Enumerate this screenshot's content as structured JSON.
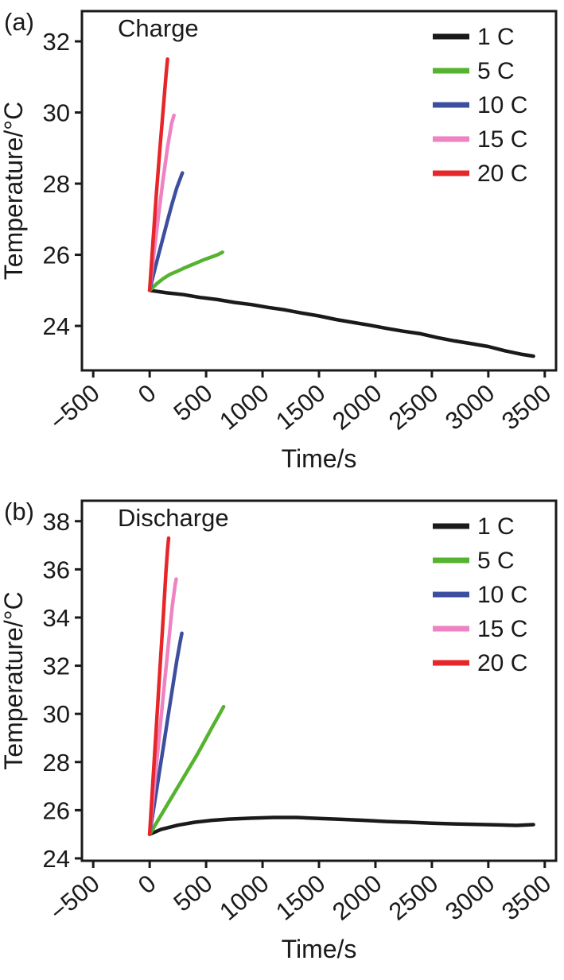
{
  "style": {
    "background": "#ffffff",
    "axis_color": "#1a1a1a",
    "line_width": 4.5,
    "legend_swatch_width": 7
  },
  "chart_data": [
    {
      "type": "line",
      "panel_label": "(a)",
      "title": "Charge",
      "xlabel": "Time/s",
      "ylabel": "Temperature/°C",
      "xlim": [
        -600,
        3600
      ],
      "ylim": [
        22.75,
        32.85
      ],
      "xticks": [
        -500,
        0,
        500,
        1000,
        1500,
        2000,
        2500,
        3000,
        3500
      ],
      "yticks": [
        24,
        26,
        28,
        30,
        32
      ],
      "grid": false,
      "legend_position": "top-right",
      "series": [
        {
          "name": "1 C",
          "color": "#1a1a1a",
          "points": [
            [
              0,
              25.0
            ],
            [
              150,
              24.93
            ],
            [
              300,
              24.88
            ],
            [
              450,
              24.8
            ],
            [
              600,
              24.74
            ],
            [
              750,
              24.66
            ],
            [
              900,
              24.6
            ],
            [
              1050,
              24.52
            ],
            [
              1200,
              24.45
            ],
            [
              1350,
              24.36
            ],
            [
              1500,
              24.28
            ],
            [
              1650,
              24.18
            ],
            [
              1800,
              24.1
            ],
            [
              1950,
              24.02
            ],
            [
              2100,
              23.93
            ],
            [
              2250,
              23.85
            ],
            [
              2400,
              23.78
            ],
            [
              2550,
              23.67
            ],
            [
              2700,
              23.58
            ],
            [
              2850,
              23.5
            ],
            [
              3000,
              23.42
            ],
            [
              3150,
              23.3
            ],
            [
              3300,
              23.2
            ],
            [
              3400,
              23.15
            ]
          ]
        },
        {
          "name": "5 C",
          "color": "#55b330",
          "points": [
            [
              0,
              25.0
            ],
            [
              60,
              25.18
            ],
            [
              120,
              25.33
            ],
            [
              180,
              25.45
            ],
            [
              240,
              25.53
            ],
            [
              300,
              25.62
            ],
            [
              360,
              25.7
            ],
            [
              420,
              25.78
            ],
            [
              480,
              25.86
            ],
            [
              540,
              25.93
            ],
            [
              600,
              26.0
            ],
            [
              645,
              26.07
            ]
          ]
        },
        {
          "name": "10 C",
          "color": "#3c4f9f",
          "points": [
            [
              0,
              25.0
            ],
            [
              40,
              25.52
            ],
            [
              80,
              26.02
            ],
            [
              120,
              26.5
            ],
            [
              160,
              26.98
            ],
            [
              200,
              27.45
            ],
            [
              240,
              27.88
            ],
            [
              275,
              28.18
            ],
            [
              290,
              28.3
            ]
          ]
        },
        {
          "name": "15 C",
          "color": "#ee82c2",
          "points": [
            [
              0,
              25.0
            ],
            [
              40,
              26.1
            ],
            [
              80,
              27.15
            ],
            [
              120,
              28.15
            ],
            [
              160,
              29.05
            ],
            [
              195,
              29.7
            ],
            [
              215,
              29.92
            ]
          ]
        },
        {
          "name": "20 C",
          "color": "#e62629",
          "points": [
            [
              0,
              25.0
            ],
            [
              30,
              26.4
            ],
            [
              60,
              27.75
            ],
            [
              90,
              28.95
            ],
            [
              120,
              30.1
            ],
            [
              145,
              31.05
            ],
            [
              158,
              31.5
            ]
          ]
        }
      ]
    },
    {
      "type": "line",
      "panel_label": "(b)",
      "title": "Discharge",
      "xlabel": "Time/s",
      "ylabel": "Temperature/°C",
      "xlim": [
        -600,
        3600
      ],
      "ylim": [
        23.9,
        38.85
      ],
      "xticks": [
        -500,
        0,
        500,
        1000,
        1500,
        2000,
        2500,
        3000,
        3500
      ],
      "yticks": [
        24,
        26,
        28,
        30,
        32,
        34,
        36,
        38
      ],
      "grid": false,
      "legend_position": "top-right",
      "series": [
        {
          "name": "1 C",
          "color": "#1a1a1a",
          "points": [
            [
              0,
              25.0
            ],
            [
              100,
              25.2
            ],
            [
              250,
              25.38
            ],
            [
              400,
              25.5
            ],
            [
              550,
              25.58
            ],
            [
              700,
              25.63
            ],
            [
              900,
              25.67
            ],
            [
              1100,
              25.7
            ],
            [
              1300,
              25.7
            ],
            [
              1500,
              25.66
            ],
            [
              1700,
              25.62
            ],
            [
              1900,
              25.58
            ],
            [
              2100,
              25.53
            ],
            [
              2300,
              25.5
            ],
            [
              2500,
              25.46
            ],
            [
              2700,
              25.43
            ],
            [
              2900,
              25.41
            ],
            [
              3100,
              25.39
            ],
            [
              3250,
              25.37
            ],
            [
              3400,
              25.4
            ]
          ]
        },
        {
          "name": "5 C",
          "color": "#55b330",
          "points": [
            [
              0,
              25.0
            ],
            [
              70,
              25.55
            ],
            [
              140,
              26.1
            ],
            [
              210,
              26.65
            ],
            [
              280,
              27.2
            ],
            [
              350,
              27.75
            ],
            [
              420,
              28.3
            ],
            [
              490,
              28.9
            ],
            [
              560,
              29.5
            ],
            [
              620,
              30.0
            ],
            [
              655,
              30.3
            ]
          ]
        },
        {
          "name": "10 C",
          "color": "#3c4f9f",
          "points": [
            [
              0,
              25.0
            ],
            [
              40,
              26.2
            ],
            [
              80,
              27.4
            ],
            [
              120,
              28.6
            ],
            [
              160,
              29.8
            ],
            [
              200,
              31.0
            ],
            [
              240,
              32.2
            ],
            [
              270,
              33.0
            ],
            [
              285,
              33.35
            ]
          ]
        },
        {
          "name": "15 C",
          "color": "#ee82c2",
          "points": [
            [
              0,
              25.0
            ],
            [
              40,
              26.95
            ],
            [
              80,
              28.85
            ],
            [
              120,
              30.75
            ],
            [
              160,
              32.6
            ],
            [
              200,
              34.45
            ],
            [
              225,
              35.35
            ],
            [
              235,
              35.6
            ]
          ]
        },
        {
          "name": "20 C",
          "color": "#e62629",
          "points": [
            [
              0,
              25.0
            ],
            [
              30,
              27.3
            ],
            [
              60,
              29.55
            ],
            [
              90,
              31.8
            ],
            [
              120,
              34.0
            ],
            [
              145,
              35.95
            ],
            [
              160,
              36.9
            ],
            [
              168,
              37.3
            ]
          ]
        }
      ]
    }
  ]
}
